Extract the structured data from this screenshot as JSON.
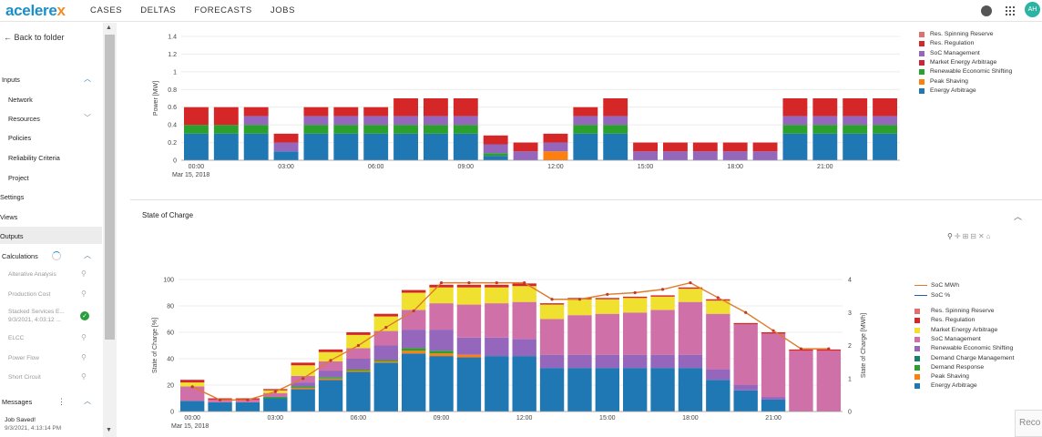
{
  "app": {
    "logo_text": "acelere",
    "logo_x": "x",
    "nav": [
      "CASES",
      "DELTAS",
      "FORECASTS",
      "JOBS"
    ],
    "avatar": "AH"
  },
  "sidebar": {
    "back": "Back to folder",
    "inputs": "Inputs",
    "network": "Network",
    "resources": "Resources",
    "policies": "Policies",
    "reliability": "Reliability Criteria",
    "project": "Project",
    "settings": "Settings",
    "views": "Views",
    "outputs": "Outputs",
    "calculations": "Calculations",
    "calc_items": [
      "Alterative Analysis",
      "Production Cost",
      "Stacked Services E...",
      "ELCC",
      "Power Flow",
      "Short Circuit"
    ],
    "stacked_date": "9/3/2021, 4:03:12 ...",
    "messages": "Messages",
    "msg_title": "Job Saved!",
    "msg_date": "9/3/2021, 4:13:14 PM"
  },
  "power_chart": {
    "ylabel": "Power [MW]",
    "yticks": [
      "0",
      "0.2",
      "0.4",
      "0.6",
      "0.8",
      "1",
      "1.2",
      "1.4"
    ],
    "xticks": [
      "00:00",
      "03:00",
      "06:00",
      "09:00",
      "12:00",
      "15:00",
      "18:00",
      "21:00"
    ],
    "date": "Mar 15, 2018",
    "legend": [
      {
        "name": "Res. Spinning Reserve",
        "color": "#e07070"
      },
      {
        "name": "Res. Regulation",
        "color": "#d62728"
      },
      {
        "name": "SoC Management",
        "color": "#9467bd"
      },
      {
        "name": "Market Energy Arbitrage",
        "color": "#c62838"
      },
      {
        "name": "Renewable Economic Shifting",
        "color": "#2ca02c"
      },
      {
        "name": "Peak Shaving",
        "color": "#ff7f0e"
      },
      {
        "name": "Energy Arbitrage",
        "color": "#1f77b4"
      }
    ]
  },
  "soc_chart": {
    "title": "State of Charge",
    "ylabel_left": "State of Charge [%]",
    "ylabel_right": "State of Charge [MWh]",
    "yticks_left": [
      "0",
      "20",
      "40",
      "60",
      "80",
      "100"
    ],
    "yticks_right": [
      "0",
      "1",
      "2",
      "3",
      "4"
    ],
    "xticks": [
      "00:00",
      "03:00",
      "06:00",
      "09:00",
      "12:00",
      "15:00",
      "18:00",
      "21:00"
    ],
    "date": "Mar 15, 2018",
    "line_legend": [
      {
        "name": "SoC MWh",
        "color": "#e07b2a"
      },
      {
        "name": "SoC %",
        "color": "#1f5fa8"
      }
    ],
    "legend": [
      {
        "name": "Res. Spinning Reserve",
        "color": "#e07070"
      },
      {
        "name": "Res. Regulation",
        "color": "#d62728"
      },
      {
        "name": "Market Energy Arbitrage",
        "color": "#f0e030"
      },
      {
        "name": "SoC Management",
        "color": "#d070a8"
      },
      {
        "name": "Renewable Economic Shifting",
        "color": "#9467bd"
      },
      {
        "name": "Demand Charge Management",
        "color": "#17806a"
      },
      {
        "name": "Demand Response",
        "color": "#2ca02c"
      },
      {
        "name": "Peak Shaving",
        "color": "#ff7f0e"
      },
      {
        "name": "Energy Arbitrage",
        "color": "#1f77b4"
      }
    ]
  },
  "chart_data": [
    {
      "type": "bar",
      "stacked": true,
      "ylabel": "Power [MW]",
      "ylim": [
        0,
        1.4
      ],
      "hours": [
        0,
        1,
        2,
        3,
        4,
        5,
        6,
        7,
        8,
        9,
        10,
        11,
        12,
        13,
        14,
        15,
        16,
        17,
        18,
        19,
        20,
        21,
        22,
        23
      ],
      "series": [
        {
          "name": "Energy Arbitrage",
          "values": [
            0.3,
            0.3,
            0.3,
            0.1,
            0.3,
            0.3,
            0.3,
            0.3,
            0.3,
            0.3,
            0.05,
            0,
            0,
            0.3,
            0.3,
            0,
            0,
            0,
            0,
            0,
            0.3,
            0.3,
            0.3,
            0.3
          ]
        },
        {
          "name": "Peak Shaving",
          "values": [
            0,
            0,
            0,
            0,
            0,
            0,
            0,
            0,
            0,
            0,
            0,
            0,
            0.1,
            0,
            0,
            0,
            0,
            0,
            0,
            0,
            0,
            0,
            0,
            0
          ]
        },
        {
          "name": "Renewable Economic Shifting",
          "values": [
            0.1,
            0.1,
            0.1,
            0,
            0.1,
            0.1,
            0.1,
            0.1,
            0.1,
            0.1,
            0.03,
            0,
            0,
            0.1,
            0.1,
            0,
            0,
            0,
            0,
            0,
            0.1,
            0.1,
            0.1,
            0.1
          ]
        },
        {
          "name": "SoC Management",
          "values": [
            0,
            0,
            0.1,
            0.1,
            0.1,
            0.1,
            0.1,
            0.1,
            0.1,
            0.1,
            0.1,
            0.1,
            0.1,
            0.1,
            0.1,
            0.1,
            0.1,
            0.1,
            0.1,
            0.1,
            0.1,
            0.1,
            0.1,
            0.1
          ]
        },
        {
          "name": "Res. Regulation",
          "values": [
            0.2,
            0.2,
            0.1,
            0.1,
            0.1,
            0.1,
            0.1,
            0.2,
            0.2,
            0.2,
            0.1,
            0.1,
            0.1,
            0.1,
            0.2,
            0.1,
            0.1,
            0.1,
            0.1,
            0.1,
            0.2,
            0.2,
            0.2,
            0.2
          ]
        }
      ]
    },
    {
      "type": "bar",
      "stacked": true,
      "ylabel": "State of Charge [%]",
      "ylim": [
        0,
        100
      ],
      "y2label": "State of Charge [MWh]",
      "y2lim": [
        0,
        4
      ],
      "hours": [
        0,
        1,
        2,
        3,
        4,
        5,
        6,
        7,
        8,
        9,
        10,
        11,
        12,
        13,
        14,
        15,
        16,
        17,
        18,
        19,
        20,
        21,
        22,
        23
      ],
      "series": [
        {
          "name": "Energy Arbitrage",
          "values": [
            8,
            7,
            7,
            10,
            17,
            24,
            30,
            37,
            44,
            42,
            41,
            42,
            42,
            33,
            33,
            33,
            33,
            33,
            33,
            24,
            16,
            9,
            0,
            0
          ]
        },
        {
          "name": "Peak Shaving",
          "values": [
            0,
            0,
            0,
            0,
            1,
            1,
            1,
            1,
            2,
            2,
            2,
            0,
            0,
            0,
            0,
            0,
            0,
            0,
            0,
            0,
            0,
            0,
            0,
            0
          ]
        },
        {
          "name": "Demand Response",
          "values": [
            0,
            0,
            0,
            1,
            1,
            1,
            1,
            1,
            2,
            2,
            0,
            0,
            0,
            0,
            0,
            0,
            0,
            0,
            0,
            0,
            0,
            0,
            0,
            0
          ]
        },
        {
          "name": "Renewable Economic Shifting",
          "values": [
            0,
            0,
            0,
            0,
            3,
            5,
            8,
            11,
            14,
            16,
            13,
            14,
            13,
            10,
            10,
            10,
            10,
            10,
            10,
            8,
            4,
            2,
            0,
            0
          ]
        },
        {
          "name": "SoC Management",
          "values": [
            11,
            2,
            2,
            3,
            5,
            7,
            8,
            11,
            15,
            20,
            25,
            26,
            28,
            27,
            30,
            31,
            32,
            34,
            40,
            42,
            46,
            48,
            46,
            46
          ]
        },
        {
          "name": "Market Energy Arbitrage",
          "values": [
            3,
            0,
            0,
            2,
            8,
            7,
            10,
            11,
            13,
            12,
            13,
            12,
            12,
            11,
            12,
            11,
            11,
            10,
            10,
            10,
            0,
            0,
            0,
            0
          ]
        },
        {
          "name": "Res. Regulation",
          "values": [
            2,
            1,
            1,
            1,
            2,
            2,
            2,
            2,
            2,
            2,
            2,
            2,
            2,
            1,
            1,
            1,
            1,
            1,
            1,
            1,
            1,
            1,
            1,
            1
          ]
        }
      ],
      "soc_mwh": [
        0.75,
        0.35,
        0.35,
        0.6,
        1.0,
        1.55,
        2.0,
        2.55,
        3.05,
        3.9,
        3.9,
        3.9,
        3.9,
        3.4,
        3.4,
        3.55,
        3.6,
        3.7,
        3.9,
        3.45,
        3.0,
        2.45,
        1.9,
        1.9
      ]
    }
  ]
}
